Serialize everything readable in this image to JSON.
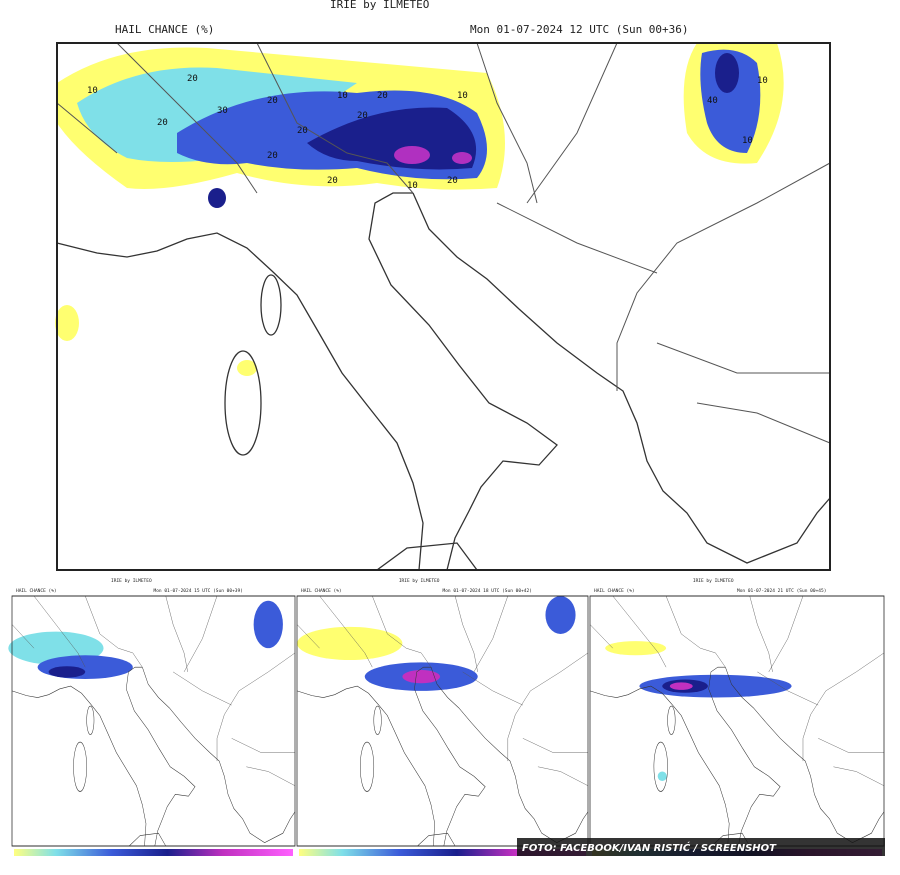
{
  "main": {
    "title": "IRIE by ILMETEO",
    "variable": "HAIL CHANCE (%)",
    "valid_time": "Mon 01-07-2024 12 UTC (Sun 00+36)",
    "contour_labels": [
      10,
      20,
      20,
      30,
      20,
      20,
      10,
      20,
      20,
      20,
      10,
      20,
      10,
      20,
      40,
      10,
      10
    ]
  },
  "panels": [
    {
      "title": "IRIE by ILMETEO",
      "variable": "HAIL CHANCE (%)",
      "valid_time": "Mon 01-07-2024 15 UTC (Sun 00+39)"
    },
    {
      "title": "IRIE by ILMETEO",
      "variable": "HAIL CHANCE (%)",
      "valid_time": "Mon 01-07-2024 18 UTC (Sun 00+42)"
    },
    {
      "title": "IRIE by ILMETEO",
      "variable": "HAIL CHANCE (%)",
      "valid_time": "Mon 01-07-2024 21 UTC (Sun 00+45)"
    }
  ],
  "credit": "FOTO: FACEBOOK/IVAN RISTIĆ / SCREENSHOT"
}
